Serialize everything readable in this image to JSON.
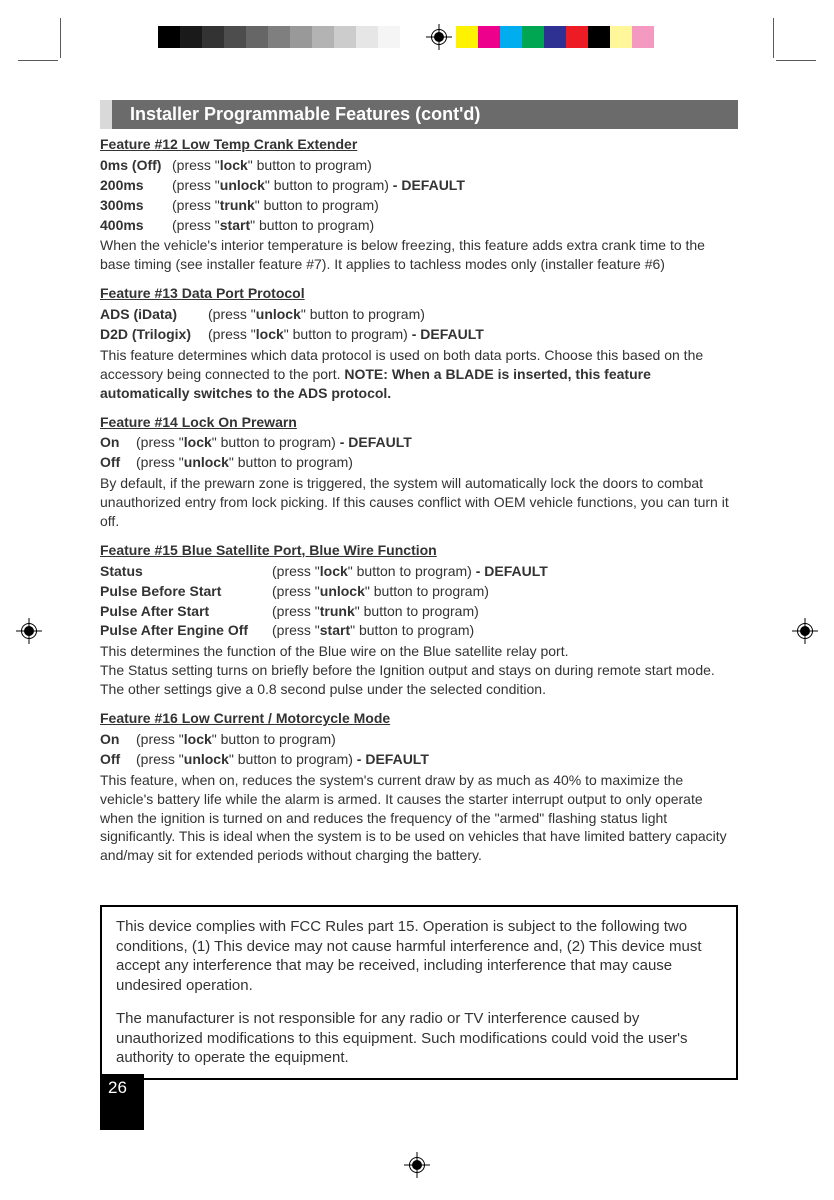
{
  "colorbar": {
    "left": [
      "#000000",
      "#1a1a1a",
      "#333333",
      "#4d4d4d",
      "#666666",
      "#7f7f7f",
      "#999999",
      "#b3b3b3",
      "#cccccc",
      "#e6e6e6",
      "#f5f5f5",
      "#ffffff"
    ],
    "right": [
      "#fff200",
      "#ec008c",
      "#00aeef",
      "#00a651",
      "#2e3192",
      "#ed1c24",
      "#000000",
      "#fff799",
      "#f49ac1",
      "#ffffff"
    ]
  },
  "header": "Installer Programmable Features (cont'd)",
  "features": [
    {
      "title": "Feature #12   Low Temp Crank Extender",
      "options": [
        {
          "label": "0ms (Off)",
          "labelWidth": "72px",
          "button": "lock",
          "default": false
        },
        {
          "label": "200ms",
          "labelWidth": "72px",
          "button": "unlock",
          "default": true
        },
        {
          "label": "300ms",
          "labelWidth": "72px",
          "button": "trunk",
          "default": false
        },
        {
          "label": "400ms",
          "labelWidth": "72px",
          "button": "start",
          "default": false
        }
      ],
      "desc": "When the vehicle's interior temperature is below freezing, this feature adds extra crank time to the base timing (see  installer feature #7). It applies to tachless modes only (installer feature #6)"
    },
    {
      "title": "Feature #13   Data Port Protocol",
      "options": [
        {
          "label": "ADS (iData)",
          "labelWidth": "108px",
          "button": "unlock",
          "default": false
        },
        {
          "label": "D2D (Trilogix)",
          "labelWidth": "108px",
          "button": "lock",
          "default": true
        }
      ],
      "desc": "This feature determines which data protocol is used on both data ports. Choose this based on the accessory being connected to the port. ",
      "note": "NOTE: When a BLADE is inserted, this feature automatically switches to the ADS protocol."
    },
    {
      "title": "Feature #14   Lock On Prewarn",
      "options": [
        {
          "label": "On",
          "labelWidth": "36px",
          "button": "lock",
          "default": true,
          "defaultSpaced": true
        },
        {
          "label": "Off",
          "labelWidth": "36px",
          "button": "unlock",
          "default": false
        }
      ],
      "desc": "By default, if the prewarn zone is triggered, the system will automatically lock the doors to combat unauthorized entry from lock picking. If this causes conflict with OEM vehicle functions, you can turn it off."
    },
    {
      "title": "Feature #15   Blue Satellite Port, Blue Wire Function",
      "options": [
        {
          "label": "Status",
          "labelWidth": "172px",
          "button": "lock",
          "default": true
        },
        {
          "label": "Pulse Before Start",
          "labelWidth": "172px",
          "button": "unlock",
          "default": false
        },
        {
          "label": "Pulse After Start",
          "labelWidth": "172px",
          "button": "trunk",
          "default": false
        },
        {
          "label": "Pulse After Engine Off",
          "labelWidth": "172px",
          "button": "start",
          "default": false
        }
      ],
      "desc": "This determines the function of the Blue wire on the Blue satellite relay port.\nThe Status setting turns on briefly before the Ignition output and stays on during remote start mode. The other settings give a 0.8 second pulse under the selected condition."
    },
    {
      "title": "Feature #16   Low Current / Motorcycle Mode",
      "options": [
        {
          "label": "On",
          "labelWidth": "36px",
          "button": "lock",
          "default": false
        },
        {
          "label": "Off",
          "labelWidth": "36px",
          "button": "unlock",
          "default": true
        }
      ],
      "desc": "This feature, when on, reduces the system's current draw by as much as 40% to maximize the vehicle's battery life while the alarm is armed. It causes the starter interrupt output to only operate when the ignition is turned on and reduces the frequency of the \"armed\" flashing status light significantly. This is ideal when the system is to be used on vehicles that have limited battery capacity and/may sit for extended periods without charging the battery."
    }
  ],
  "fcc": {
    "p1": "This device complies with FCC Rules part 15. Operation is subject to the following two conditions, (1) This device may not cause harmful interference and, (2) This device must accept any interference that may be received, including interference that may cause undesired operation.",
    "p2": "The manufacturer is not responsible for any radio or TV interference caused by unauthorized modifications to this equipment. Such modifications could void the user's authority to operate the equipment."
  },
  "pageNumber": "26",
  "pressPrefix": "(press \"",
  "pressSuffix": "\" button to program)",
  "defaultText": " - DEFAULT",
  "defaultTextSpaced": "  - DEFAULT"
}
